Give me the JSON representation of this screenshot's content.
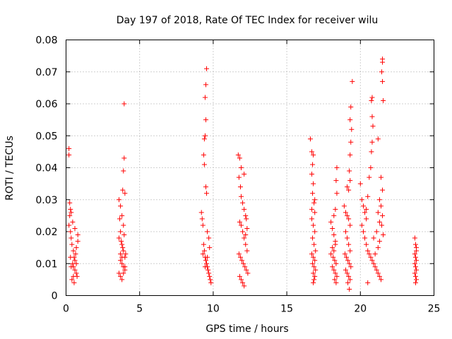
{
  "chart_data": {
    "type": "scatter",
    "title": "Day 197 of 2018, Rate Of TEC Index for receiver wilu",
    "xlabel": "GPS time / hours",
    "ylabel": "ROTI / TECUs",
    "xlim": [
      0,
      25
    ],
    "ylim": [
      0,
      0.08
    ],
    "grid": true,
    "x_ticks": [
      0,
      5,
      10,
      15,
      20,
      25
    ],
    "y_ticks": [
      0,
      0.01,
      0.02,
      0.03,
      0.04,
      0.05,
      0.06,
      0.07,
      0.08
    ],
    "x_tick_labels": [
      "0",
      "5",
      "10",
      "15",
      "20",
      "25"
    ],
    "y_tick_labels": [
      "0",
      "0.01",
      "0.02",
      "0.03",
      "0.04",
      "0.05",
      "0.06",
      "0.07",
      "0.08"
    ],
    "marker": "plus",
    "color": "#ff0000",
    "series": [
      {
        "name": "ROTI",
        "points": [
          [
            0.2,
            0.046
          ],
          [
            0.2,
            0.044
          ],
          [
            0.25,
            0.029
          ],
          [
            0.3,
            0.027
          ],
          [
            0.25,
            0.025
          ],
          [
            0.2,
            0.022
          ],
          [
            0.3,
            0.02
          ],
          [
            0.35,
            0.018
          ],
          [
            0.4,
            0.016
          ],
          [
            0.5,
            0.014
          ],
          [
            0.55,
            0.012
          ],
          [
            0.6,
            0.011
          ],
          [
            0.45,
            0.01
          ],
          [
            0.5,
            0.009
          ],
          [
            0.6,
            0.008
          ],
          [
            0.7,
            0.007
          ],
          [
            0.75,
            0.006
          ],
          [
            0.4,
            0.005
          ],
          [
            0.55,
            0.004
          ],
          [
            0.65,
            0.013
          ],
          [
            0.7,
            0.015
          ],
          [
            0.8,
            0.017
          ],
          [
            0.8,
            0.019
          ],
          [
            0.6,
            0.021
          ],
          [
            0.45,
            0.023
          ],
          [
            0.35,
            0.026
          ],
          [
            0.3,
            0.012
          ],
          [
            0.35,
            0.009
          ],
          [
            0.5,
            0.006
          ],
          [
            0.7,
            0.01
          ],
          [
            3.6,
            0.03
          ],
          [
            3.7,
            0.028
          ],
          [
            3.8,
            0.025
          ],
          [
            3.9,
            0.022
          ],
          [
            3.7,
            0.02
          ],
          [
            3.6,
            0.018
          ],
          [
            3.8,
            0.016
          ],
          [
            3.9,
            0.014
          ],
          [
            4.0,
            0.012
          ],
          [
            3.7,
            0.011
          ],
          [
            3.8,
            0.01
          ],
          [
            3.9,
            0.009
          ],
          [
            4.0,
            0.008
          ],
          [
            3.6,
            0.007
          ],
          [
            3.7,
            0.006
          ],
          [
            3.8,
            0.005
          ],
          [
            3.9,
            0.007
          ],
          [
            4.0,
            0.009
          ],
          [
            4.05,
            0.013
          ],
          [
            3.85,
            0.033
          ],
          [
            3.9,
            0.039
          ],
          [
            3.95,
            0.043
          ],
          [
            4.0,
            0.032
          ],
          [
            3.95,
            0.06
          ],
          [
            3.65,
            0.024
          ],
          [
            3.75,
            0.017
          ],
          [
            3.85,
            0.015
          ],
          [
            3.95,
            0.019
          ],
          [
            3.7,
            0.013
          ],
          [
            3.8,
            0.012
          ],
          [
            9.2,
            0.026
          ],
          [
            9.25,
            0.024
          ],
          [
            9.3,
            0.022
          ],
          [
            9.35,
            0.016
          ],
          [
            9.4,
            0.014
          ],
          [
            9.45,
            0.012
          ],
          [
            9.5,
            0.011
          ],
          [
            9.55,
            0.01
          ],
          [
            9.6,
            0.009
          ],
          [
            9.65,
            0.008
          ],
          [
            9.7,
            0.007
          ],
          [
            9.75,
            0.006
          ],
          [
            9.8,
            0.005
          ],
          [
            9.85,
            0.004
          ],
          [
            9.55,
            0.071
          ],
          [
            9.5,
            0.066
          ],
          [
            9.45,
            0.062
          ],
          [
            9.5,
            0.055
          ],
          [
            9.45,
            0.05
          ],
          [
            9.4,
            0.049
          ],
          [
            9.35,
            0.044
          ],
          [
            9.4,
            0.041
          ],
          [
            9.5,
            0.034
          ],
          [
            9.55,
            0.032
          ],
          [
            9.6,
            0.02
          ],
          [
            9.7,
            0.018
          ],
          [
            9.3,
            0.013
          ],
          [
            9.45,
            0.009
          ],
          [
            9.6,
            0.012
          ],
          [
            9.75,
            0.015
          ],
          [
            11.7,
            0.044
          ],
          [
            11.8,
            0.043
          ],
          [
            11.9,
            0.04
          ],
          [
            11.75,
            0.037
          ],
          [
            11.85,
            0.034
          ],
          [
            11.9,
            0.031
          ],
          [
            12.0,
            0.029
          ],
          [
            12.1,
            0.027
          ],
          [
            12.2,
            0.025
          ],
          [
            11.8,
            0.023
          ],
          [
            11.9,
            0.022
          ],
          [
            12.0,
            0.02
          ],
          [
            12.1,
            0.018
          ],
          [
            12.2,
            0.016
          ],
          [
            12.3,
            0.014
          ],
          [
            11.75,
            0.013
          ],
          [
            11.85,
            0.012
          ],
          [
            11.95,
            0.011
          ],
          [
            12.05,
            0.01
          ],
          [
            12.15,
            0.009
          ],
          [
            12.25,
            0.008
          ],
          [
            12.35,
            0.007
          ],
          [
            11.8,
            0.006
          ],
          [
            11.9,
            0.005
          ],
          [
            12.0,
            0.004
          ],
          [
            12.1,
            0.003
          ],
          [
            12.2,
            0.019
          ],
          [
            12.3,
            0.021
          ],
          [
            12.1,
            0.038
          ],
          [
            12.25,
            0.024
          ],
          [
            16.6,
            0.049
          ],
          [
            16.7,
            0.045
          ],
          [
            16.8,
            0.044
          ],
          [
            16.75,
            0.041
          ],
          [
            16.7,
            0.038
          ],
          [
            16.8,
            0.035
          ],
          [
            16.75,
            0.032
          ],
          [
            16.85,
            0.029
          ],
          [
            16.9,
            0.026
          ],
          [
            16.7,
            0.024
          ],
          [
            16.8,
            0.022
          ],
          [
            16.9,
            0.02
          ],
          [
            16.75,
            0.018
          ],
          [
            16.85,
            0.016
          ],
          [
            16.95,
            0.014
          ],
          [
            16.7,
            0.013
          ],
          [
            16.8,
            0.012
          ],
          [
            16.9,
            0.011
          ],
          [
            16.75,
            0.01
          ],
          [
            16.85,
            0.009
          ],
          [
            16.95,
            0.008
          ],
          [
            16.8,
            0.007
          ],
          [
            16.9,
            0.006
          ],
          [
            16.85,
            0.005
          ],
          [
            16.8,
            0.004
          ],
          [
            16.7,
            0.027
          ],
          [
            16.9,
            0.03
          ],
          [
            18.0,
            0.023
          ],
          [
            18.1,
            0.021
          ],
          [
            18.2,
            0.019
          ],
          [
            18.3,
            0.017
          ],
          [
            18.4,
            0.04
          ],
          [
            18.35,
            0.036
          ],
          [
            18.4,
            0.032
          ],
          [
            18.3,
            0.027
          ],
          [
            18.2,
            0.025
          ],
          [
            18.1,
            0.015
          ],
          [
            18.0,
            0.013
          ],
          [
            18.15,
            0.012
          ],
          [
            18.25,
            0.011
          ],
          [
            18.35,
            0.01
          ],
          [
            18.1,
            0.009
          ],
          [
            18.2,
            0.008
          ],
          [
            18.3,
            0.007
          ],
          [
            18.4,
            0.006
          ],
          [
            18.25,
            0.005
          ],
          [
            18.35,
            0.004
          ],
          [
            18.2,
            0.014
          ],
          [
            18.3,
            0.016
          ],
          [
            18.9,
            0.028
          ],
          [
            19.0,
            0.026
          ],
          [
            19.1,
            0.025
          ],
          [
            19.2,
            0.024
          ],
          [
            19.3,
            0.022
          ],
          [
            19.1,
            0.034
          ],
          [
            19.2,
            0.033
          ],
          [
            19.3,
            0.036
          ],
          [
            19.25,
            0.039
          ],
          [
            19.3,
            0.044
          ],
          [
            19.35,
            0.048
          ],
          [
            19.4,
            0.052
          ],
          [
            19.3,
            0.055
          ],
          [
            19.35,
            0.059
          ],
          [
            19.45,
            0.067
          ],
          [
            19.0,
            0.02
          ],
          [
            19.1,
            0.018
          ],
          [
            19.2,
            0.016
          ],
          [
            19.3,
            0.014
          ],
          [
            18.95,
            0.013
          ],
          [
            19.05,
            0.012
          ],
          [
            19.15,
            0.011
          ],
          [
            19.25,
            0.01
          ],
          [
            19.35,
            0.009
          ],
          [
            19.0,
            0.008
          ],
          [
            19.1,
            0.007
          ],
          [
            19.2,
            0.006
          ],
          [
            19.3,
            0.005
          ],
          [
            19.15,
            0.004
          ],
          [
            19.25,
            0.002
          ],
          [
            20.0,
            0.035
          ],
          [
            20.1,
            0.03
          ],
          [
            20.2,
            0.028
          ],
          [
            20.3,
            0.026
          ],
          [
            20.4,
            0.024
          ],
          [
            20.1,
            0.022
          ],
          [
            20.2,
            0.02
          ],
          [
            20.3,
            0.018
          ],
          [
            20.4,
            0.016
          ],
          [
            20.5,
            0.014
          ],
          [
            20.6,
            0.013
          ],
          [
            20.7,
            0.012
          ],
          [
            20.8,
            0.011
          ],
          [
            20.9,
            0.01
          ],
          [
            21.0,
            0.009
          ],
          [
            21.1,
            0.008
          ],
          [
            21.2,
            0.007
          ],
          [
            21.3,
            0.006
          ],
          [
            21.4,
            0.005
          ],
          [
            20.5,
            0.004
          ],
          [
            20.6,
            0.037
          ],
          [
            20.7,
            0.04
          ],
          [
            20.75,
            0.045
          ],
          [
            20.8,
            0.048
          ],
          [
            20.85,
            0.053
          ],
          [
            20.8,
            0.056
          ],
          [
            20.75,
            0.061
          ],
          [
            20.8,
            0.062
          ],
          [
            21.2,
            0.049
          ],
          [
            21.5,
            0.074
          ],
          [
            21.5,
            0.073
          ],
          [
            21.45,
            0.07
          ],
          [
            21.5,
            0.067
          ],
          [
            21.55,
            0.061
          ],
          [
            21.4,
            0.037
          ],
          [
            21.5,
            0.033
          ],
          [
            21.4,
            0.028
          ],
          [
            21.5,
            0.025
          ],
          [
            21.45,
            0.022
          ],
          [
            21.55,
            0.019
          ],
          [
            21.3,
            0.017
          ],
          [
            21.2,
            0.015
          ],
          [
            21.0,
            0.013
          ],
          [
            20.9,
            0.018
          ],
          [
            21.1,
            0.02
          ],
          [
            21.3,
            0.023
          ],
          [
            20.5,
            0.031
          ],
          [
            20.4,
            0.027
          ],
          [
            21.2,
            0.026
          ],
          [
            21.3,
            0.03
          ],
          [
            23.7,
            0.018
          ],
          [
            23.75,
            0.016
          ],
          [
            23.8,
            0.014
          ],
          [
            23.7,
            0.013
          ],
          [
            23.75,
            0.012
          ],
          [
            23.8,
            0.011
          ],
          [
            23.7,
            0.01
          ],
          [
            23.75,
            0.009
          ],
          [
            23.8,
            0.008
          ],
          [
            23.7,
            0.007
          ],
          [
            23.75,
            0.006
          ],
          [
            23.8,
            0.005
          ],
          [
            23.75,
            0.004
          ],
          [
            23.8,
            0.015
          ]
        ]
      }
    ]
  }
}
